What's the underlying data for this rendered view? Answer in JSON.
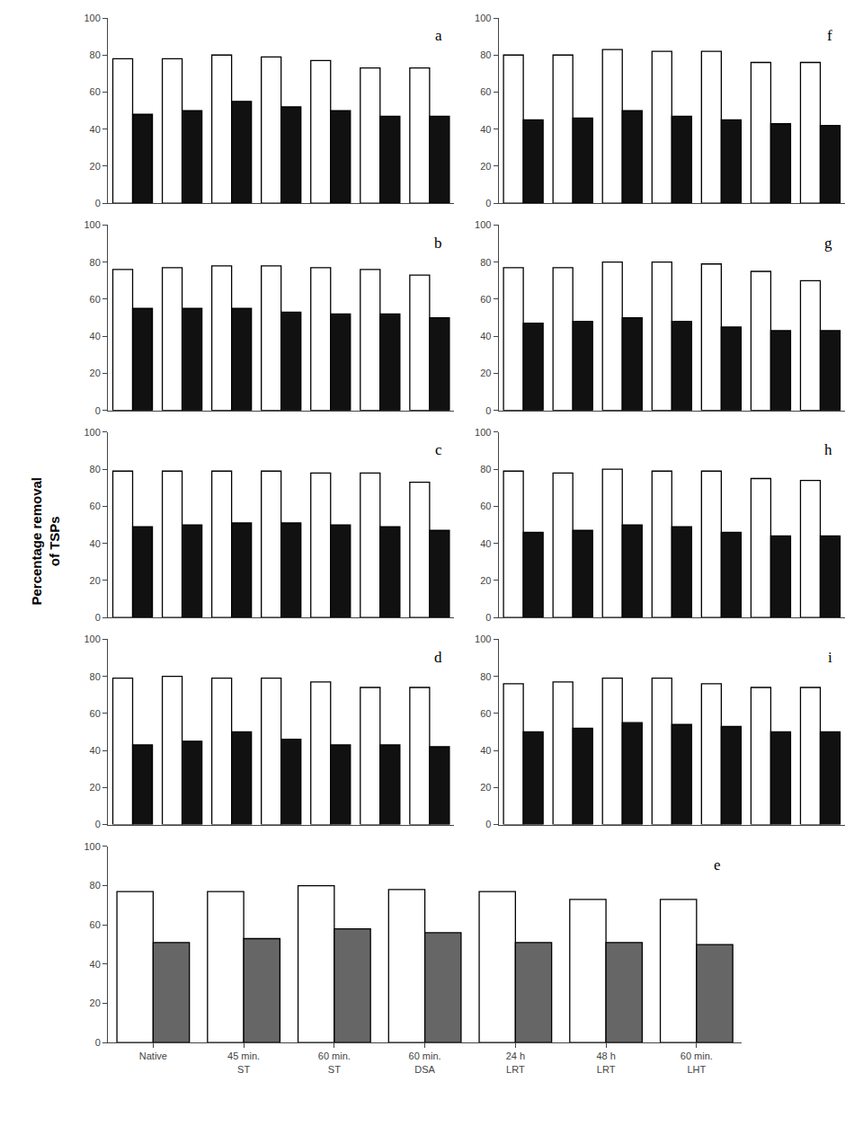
{
  "chart_data": [
    {
      "type": "bar",
      "title": "a",
      "ylabel": "Percentage removal\nof TSPs",
      "categories": [
        null,
        null,
        null,
        null,
        null,
        null,
        null
      ],
      "series": [
        {
          "color": "white",
          "values": [
            78,
            78,
            80,
            79,
            77,
            73,
            73
          ]
        },
        {
          "color": "#111111",
          "values": [
            48,
            50,
            55,
            52,
            50,
            47,
            47
          ]
        }
      ],
      "ylim": [
        0,
        100
      ],
      "yticks": [
        0,
        20,
        40,
        60,
        80,
        100
      ],
      "grid": false,
      "tick_labels": "y"
    },
    {
      "type": "bar",
      "title": "b",
      "categories": [
        null,
        null,
        null,
        null,
        null,
        null,
        null
      ],
      "series": [
        {
          "color": "white",
          "values": [
            76,
            77,
            78,
            78,
            77,
            76,
            73
          ]
        },
        {
          "color": "#111111",
          "values": [
            55,
            55,
            55,
            53,
            52,
            52,
            50
          ]
        }
      ],
      "ylim": [
        0,
        100
      ],
      "yticks": [
        0,
        20,
        40,
        60,
        80,
        100
      ],
      "grid": false,
      "tick_labels": "y"
    },
    {
      "type": "bar",
      "title": "c",
      "categories": [
        null,
        null,
        null,
        null,
        null,
        null,
        null
      ],
      "series": [
        {
          "color": "white",
          "values": [
            79,
            79,
            79,
            79,
            78,
            78,
            73
          ]
        },
        {
          "color": "#111111",
          "values": [
            49,
            50,
            51,
            51,
            50,
            49,
            47
          ]
        }
      ],
      "ylim": [
        0,
        100
      ],
      "yticks": [
        0,
        20,
        40,
        60,
        80,
        100
      ],
      "grid": false,
      "tick_labels": "y"
    },
    {
      "type": "bar",
      "title": "d",
      "categories": [
        null,
        null,
        null,
        null,
        null,
        null,
        null
      ],
      "series": [
        {
          "color": "white",
          "values": [
            79,
            80,
            79,
            79,
            77,
            74,
            74
          ]
        },
        {
          "color": "#111111",
          "values": [
            43,
            45,
            50,
            46,
            43,
            43,
            42
          ]
        }
      ],
      "ylim": [
        0,
        100
      ],
      "yticks": [
        0,
        20,
        40,
        60,
        80,
        100
      ],
      "grid": false,
      "tick_labels": "y"
    },
    {
      "type": "bar",
      "title": "e",
      "categories": [
        "Native",
        "45 min.\nST",
        "60 min.\nST",
        "60 min.\nDSA",
        "24 h\nLRT",
        "48 h\nLRT",
        "60 min.\nLHT"
      ],
      "series": [
        {
          "color": "white",
          "values": [
            77,
            77,
            80,
            78,
            77,
            73,
            73
          ]
        },
        {
          "color": "#666666",
          "values": [
            51,
            53,
            58,
            56,
            51,
            51,
            50
          ]
        }
      ],
      "ylim": [
        0,
        100
      ],
      "yticks": [
        0,
        20,
        40,
        60,
        80,
        100
      ],
      "grid": false
    },
    {
      "type": "bar",
      "title": "f",
      "categories": [
        null,
        null,
        null,
        null,
        null,
        null,
        null
      ],
      "series": [
        {
          "color": "white",
          "values": [
            80,
            80,
            83,
            82,
            82,
            76,
            76
          ]
        },
        {
          "color": "#111111",
          "values": [
            45,
            46,
            50,
            47,
            45,
            43,
            42
          ]
        }
      ],
      "ylim": [
        0,
        100
      ],
      "yticks": [
        0,
        20,
        40,
        60,
        80,
        100
      ],
      "grid": false,
      "tick_labels": "y"
    },
    {
      "type": "bar",
      "title": "g",
      "categories": [
        null,
        null,
        null,
        null,
        null,
        null,
        null
      ],
      "series": [
        {
          "color": "white",
          "values": [
            77,
            77,
            80,
            80,
            79,
            75,
            70
          ]
        },
        {
          "color": "#111111",
          "values": [
            47,
            48,
            50,
            48,
            45,
            43,
            43
          ]
        }
      ],
      "ylim": [
        0,
        100
      ],
      "yticks": [
        0,
        20,
        40,
        60,
        80,
        100
      ],
      "grid": false,
      "tick_labels": "y"
    },
    {
      "type": "bar",
      "title": "h",
      "categories": [
        null,
        null,
        null,
        null,
        null,
        null,
        null
      ],
      "series": [
        {
          "color": "white",
          "values": [
            79,
            78,
            80,
            79,
            79,
            75,
            74
          ]
        },
        {
          "color": "#111111",
          "values": [
            46,
            47,
            50,
            49,
            46,
            44,
            44
          ]
        }
      ],
      "ylim": [
        0,
        100
      ],
      "yticks": [
        0,
        20,
        40,
        60,
        80,
        100
      ],
      "grid": false,
      "tick_labels": "y"
    },
    {
      "type": "bar",
      "title": "i",
      "categories": [
        null,
        null,
        null,
        null,
        null,
        null,
        null
      ],
      "series": [
        {
          "color": "white",
          "values": [
            76,
            77,
            79,
            79,
            76,
            74,
            74
          ]
        },
        {
          "color": "#111111",
          "values": [
            50,
            52,
            55,
            54,
            53,
            50,
            50
          ]
        }
      ],
      "ylim": [
        0,
        100
      ],
      "yticks": [
        0,
        20,
        40,
        60,
        80,
        100
      ],
      "grid": false,
      "tick_labels": "y"
    }
  ]
}
